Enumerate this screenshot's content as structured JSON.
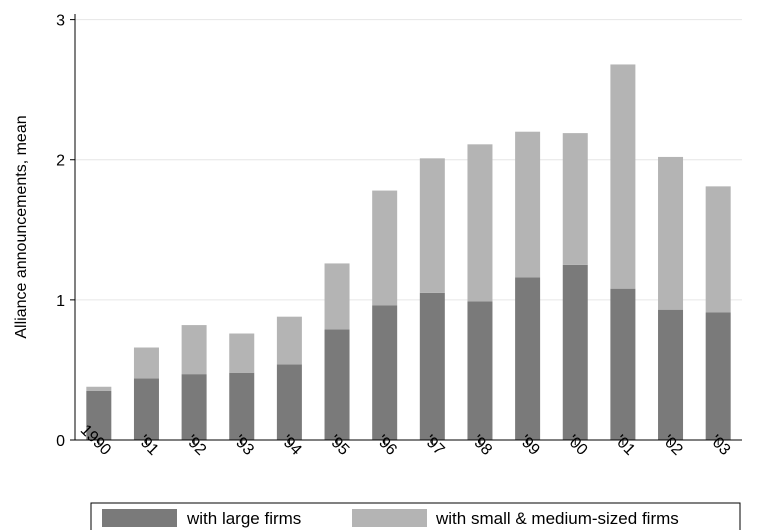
{
  "chart_data": {
    "type": "bar",
    "stacked": true,
    "categories": [
      "1990",
      "'91",
      "'92",
      "'93",
      "'94",
      "'95",
      "'96",
      "'97",
      "'98",
      "'99",
      "'00",
      "'01",
      "'02",
      "'03"
    ],
    "series": [
      {
        "name": "with large firms",
        "color": "#7a7a7a",
        "values": [
          0.35,
          0.44,
          0.47,
          0.48,
          0.54,
          0.79,
          0.96,
          1.05,
          0.99,
          1.16,
          1.25,
          1.08,
          0.93,
          0.91
        ]
      },
      {
        "name": "with small & medium-sized firms",
        "color": "#b4b4b4",
        "values": [
          0.03,
          0.22,
          0.35,
          0.28,
          0.34,
          0.47,
          0.82,
          0.96,
          1.12,
          1.04,
          0.94,
          1.6,
          1.09,
          0.9
        ]
      }
    ],
    "xlabel": "",
    "ylabel": "Alliance announcements, mean",
    "ylim": [
      0,
      3
    ],
    "yticks": [
      0,
      1,
      2,
      3
    ],
    "grid": true,
    "legend": "bottom"
  }
}
